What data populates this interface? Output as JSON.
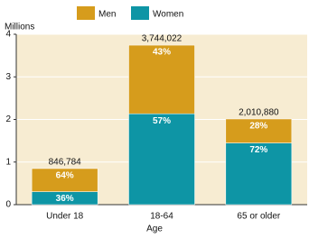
{
  "chart_data": {
    "type": "stacked_bar",
    "y_unit_label": "Millions",
    "x_label": "Age",
    "categories": [
      "Under 18",
      "18-64",
      "65 or older"
    ],
    "series": [
      {
        "name": "Women",
        "color": "#0e95a5",
        "values": [
          0.305,
          2.134,
          1.448
        ],
        "value_labels": [
          "36%",
          "57%",
          "72%"
        ]
      },
      {
        "name": "Men",
        "color": "#d69c1c",
        "values": [
          0.542,
          1.61,
          0.563
        ],
        "value_labels": [
          "64%",
          "43%",
          "28%"
        ]
      }
    ],
    "totals": {
      "values": [
        0.846784,
        3.744022,
        2.01088
      ],
      "value_labels": [
        "846,784",
        "3,744,022",
        "2,010,880"
      ]
    },
    "ylim": [
      0,
      4
    ],
    "yticks": [
      0,
      1,
      2,
      3,
      4
    ],
    "grid": true,
    "background": "#f7ecd2"
  }
}
